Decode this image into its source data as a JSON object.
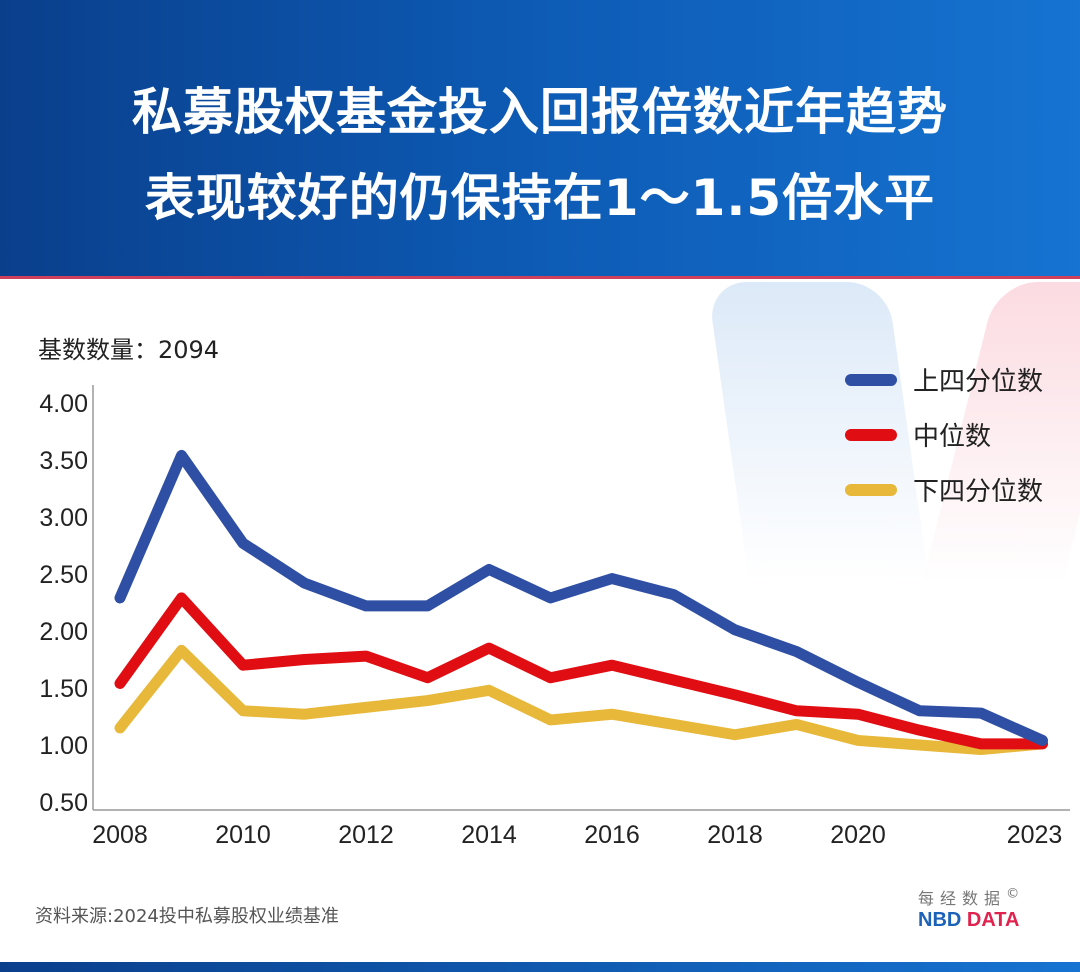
{
  "header": {
    "title_line1": "私募股权基金投入回报倍数近年趋势",
    "title_line2": "表现较好的仍保持在1～1.5倍水平"
  },
  "sample_count": "基数数量：2094",
  "source": "资料来源:2024投中私募股权业绩基准",
  "logo": {
    "cn": "每经数据",
    "en_blue": "NBD",
    "en_red": "DATA",
    "mark": "©"
  },
  "chart_data": {
    "type": "line",
    "x": [
      2008,
      2009,
      2010,
      2011,
      2012,
      2013,
      2014,
      2015,
      2016,
      2017,
      2018,
      2019,
      2020,
      2021,
      2022,
      2023
    ],
    "xticks": [
      "2008",
      "2010",
      "2012",
      "2014",
      "2016",
      "2018",
      "2020",
      "2023"
    ],
    "yticks": [
      "4.00",
      "3.50",
      "3.00",
      "2.50",
      "2.00",
      "1.50",
      "1.00",
      "0.50"
    ],
    "ylim": [
      0.5,
      4.0
    ],
    "grid": false,
    "legend_placement": "top-right",
    "series": [
      {
        "name": "上四分位数",
        "color": "#2e4fa3",
        "values": [
          2.29,
          3.54,
          2.77,
          2.42,
          2.22,
          2.22,
          2.54,
          2.29,
          2.46,
          2.32,
          2.01,
          1.82,
          1.55,
          1.3,
          1.28,
          1.04
        ]
      },
      {
        "name": "中位数",
        "color": "#e00d12",
        "values": [
          1.54,
          2.29,
          1.7,
          1.75,
          1.78,
          1.59,
          1.85,
          1.59,
          1.7,
          1.57,
          1.44,
          1.3,
          1.27,
          1.13,
          1.01,
          1.01
        ]
      },
      {
        "name": "下四分位数",
        "color": "#e8b83a",
        "values": [
          1.15,
          1.83,
          1.3,
          1.27,
          1.33,
          1.39,
          1.48,
          1.22,
          1.27,
          1.18,
          1.09,
          1.18,
          1.04,
          1.0,
          0.96,
          1.01
        ]
      }
    ]
  }
}
